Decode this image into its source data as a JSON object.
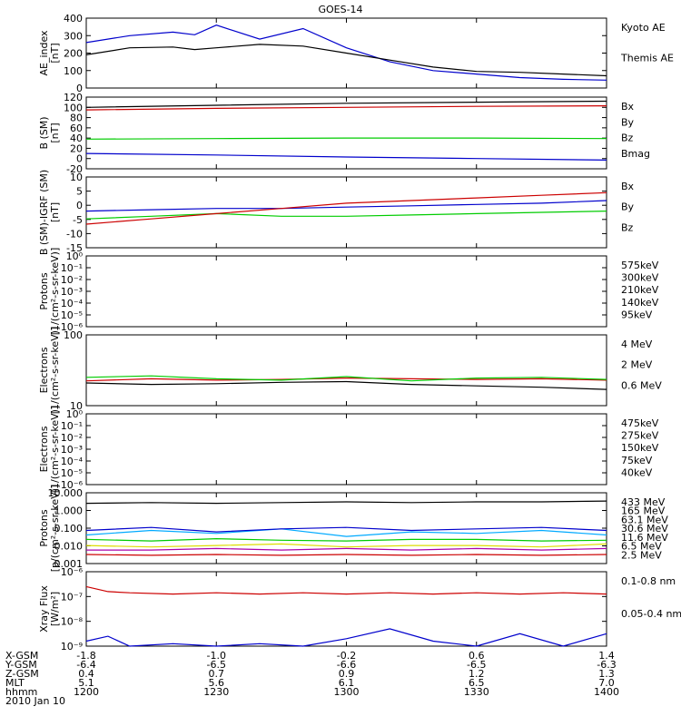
{
  "title": "GOES-14",
  "colors": {
    "black": "#000000",
    "red": "#cc0000",
    "green": "#00cc00",
    "blue": "#0000cc",
    "orange": "#ffaa00",
    "cyan": "#00aaff",
    "yellow": "#dddd00",
    "purple": "#aa00aa"
  },
  "x_axis": {
    "ticks": [
      1200,
      1230,
      1300,
      1330,
      1400
    ],
    "rows": [
      {
        "label": "X-GSM",
        "values": [
          "-1.8",
          "-1.0",
          "-0.2",
          "0.6",
          "1.4"
        ]
      },
      {
        "label": "Y-GSM",
        "values": [
          "-6.4",
          "-6.5",
          "-6.6",
          "-6.5",
          "-6.3"
        ]
      },
      {
        "label": "Z-GSM",
        "values": [
          "0.4",
          "0.7",
          "0.9",
          "1.2",
          "1.3"
        ]
      },
      {
        "label": "MLT",
        "values": [
          "5.1",
          "5.6",
          "6.1",
          "6.5",
          "7.0"
        ]
      },
      {
        "label": "hhmm",
        "values": [
          "1200",
          "1230",
          "1300",
          "1330",
          "1400"
        ]
      }
    ],
    "date": "2010 Jan 10"
  },
  "chart_data": [
    {
      "type": "line",
      "ylabel": "AE_index\n[nT]",
      "ylim": [
        0,
        400
      ],
      "ytick_labels": [
        "0",
        "100",
        "200",
        "300",
        "400"
      ],
      "x": [
        1200,
        1210,
        1220,
        1225,
        1230,
        1240,
        1250,
        1300,
        1310,
        1320,
        1330,
        1340,
        1350,
        1400
      ],
      "series": [
        {
          "name": "Kyoto AE",
          "color": "blue",
          "values": [
            260,
            300,
            320,
            305,
            360,
            280,
            340,
            230,
            150,
            100,
            80,
            60,
            50,
            45
          ]
        },
        {
          "name": "Themis AE",
          "color": "black",
          "values": [
            190,
            230,
            235,
            220,
            230,
            250,
            240,
            200,
            160,
            120,
            95,
            90,
            80,
            70
          ]
        }
      ]
    },
    {
      "type": "line",
      "ylabel": "B (SM)\n[nT]",
      "ylim": [
        -20,
        120
      ],
      "ytick_labels": [
        "-20",
        "0",
        "20",
        "40",
        "60",
        "80",
        "100",
        "120"
      ],
      "x": [
        1200,
        1230,
        1300,
        1330,
        1400
      ],
      "series": [
        {
          "name": "Bx",
          "color": "blue",
          "values": [
            10,
            7,
            3,
            0,
            -3
          ]
        },
        {
          "name": "By",
          "color": "green",
          "values": [
            38,
            39,
            40,
            40,
            39
          ]
        },
        {
          "name": "Bz",
          "color": "red",
          "values": [
            95,
            98,
            100,
            102,
            103
          ]
        },
        {
          "name": "Bmag",
          "color": "black",
          "values": [
            100,
            104,
            108,
            110,
            112
          ]
        }
      ]
    },
    {
      "type": "line",
      "ylabel": "B (SM)-IGRF (SM)\n[nT]",
      "ylim": [
        -15,
        12
      ],
      "ytick_labels": [
        "-15",
        "-10",
        "-5",
        "0",
        "5",
        "10"
      ],
      "x": [
        1200,
        1215,
        1230,
        1245,
        1300,
        1315,
        1330,
        1345,
        1400
      ],
      "series": [
        {
          "name": "Bx",
          "color": "blue",
          "values": [
            -1,
            -0.5,
            0,
            0,
            0.5,
            1,
            1.5,
            2,
            3
          ]
        },
        {
          "name": "By",
          "color": "green",
          "values": [
            -4,
            -3,
            -2,
            -3,
            -3,
            -2.5,
            -2,
            -1.5,
            -1
          ]
        },
        {
          "name": "Bz",
          "color": "red",
          "values": [
            -6,
            -4,
            -2,
            0,
            2,
            3,
            4,
            5,
            6
          ]
        }
      ]
    },
    {
      "type": "line",
      "ylabel": "Protons\n[1/(cm²-s-sr-keV)]",
      "ylim": [
        -6,
        0
      ],
      "log": true,
      "ytick_labels": [
        "10⁻⁶",
        "10⁻⁵",
        "10⁻⁴",
        "10⁻³",
        "10⁻²",
        "10⁻¹",
        "10⁰"
      ],
      "series": [
        {
          "name": "575keV",
          "color": "red"
        },
        {
          "name": "300keV",
          "color": "orange"
        },
        {
          "name": "210keV",
          "color": "green"
        },
        {
          "name": "140keV",
          "color": "blue"
        },
        {
          "name": "95keV",
          "color": "black"
        }
      ]
    },
    {
      "type": "line",
      "ylabel": "Electrons\n[1/(cm²-s-sr-keV)]",
      "ylim": [
        1,
        2
      ],
      "log": true,
      "ytick_labels": [
        "10",
        "100"
      ],
      "x": [
        1200,
        1215,
        1230,
        1245,
        1300,
        1315,
        1330,
        1345,
        1400
      ],
      "series": [
        {
          "name": "4 MeV",
          "color": "red",
          "values": [
            1.35,
            1.38,
            1.36,
            1.37,
            1.39,
            1.38,
            1.37,
            1.38,
            1.36
          ]
        },
        {
          "name": "2 MeV",
          "color": "green",
          "values": [
            1.4,
            1.42,
            1.38,
            1.36,
            1.41,
            1.35,
            1.39,
            1.4,
            1.37
          ]
        },
        {
          "name": "0.6 MeV",
          "color": "black",
          "values": [
            1.32,
            1.3,
            1.31,
            1.33,
            1.34,
            1.3,
            1.28,
            1.26,
            1.23
          ]
        }
      ]
    },
    {
      "type": "line",
      "ylabel": "Electrons\n[1/(cm²-s-sr-keV)]",
      "ylim": [
        -6,
        0
      ],
      "log": true,
      "ytick_labels": [
        "10⁻⁶",
        "10⁻⁵",
        "10⁻⁴",
        "10⁻³",
        "10⁻²",
        "10⁻¹",
        "10⁰"
      ],
      "series": [
        {
          "name": "475keV",
          "color": "red"
        },
        {
          "name": "275keV",
          "color": "orange"
        },
        {
          "name": "150keV",
          "color": "green"
        },
        {
          "name": "75keV",
          "color": "blue"
        },
        {
          "name": "40keV",
          "color": "black"
        }
      ]
    },
    {
      "type": "line",
      "ylabel": "Protons\n[p/(cm²-s-sr-keV)]",
      "ylim": [
        -3,
        1.7
      ],
      "log": true,
      "ytick_labels": [
        "0.001",
        "0.010",
        "0.100",
        "1.000",
        "10.000"
      ],
      "x": [
        1200,
        1215,
        1230,
        1245,
        1300,
        1315,
        1330,
        1345,
        1400
      ],
      "series": [
        {
          "name": "433 MeV",
          "color": "black",
          "values": [
            1.0,
            1.05,
            1.0,
            1.05,
            1.1,
            1.05,
            1.1,
            1.1,
            1.15
          ]
        },
        {
          "name": "165 MeV",
          "color": "red",
          "values": [
            -2.4,
            -2.45,
            -2.4,
            -2.45,
            -2.4,
            -2.45,
            -2.4,
            -2.45,
            -2.4
          ]
        },
        {
          "name": "63.1 MeV",
          "color": "yellow",
          "values": [
            -1.8,
            -1.9,
            -1.8,
            -1.7,
            -1.9,
            -1.8,
            -1.8,
            -1.9,
            -1.7
          ]
        },
        {
          "name": "30.6 MeV",
          "color": "green",
          "values": [
            -1.4,
            -1.5,
            -1.35,
            -1.45,
            -1.5,
            -1.4,
            -1.4,
            -1.5,
            -1.45
          ]
        },
        {
          "name": "11.6 MeV",
          "color": "cyan",
          "values": [
            -1.1,
            -0.8,
            -1.0,
            -0.7,
            -1.2,
            -0.9,
            -1.0,
            -0.8,
            -1.1
          ]
        },
        {
          "name": "6.5 MeV",
          "color": "purple",
          "values": [
            -2.1,
            -2.1,
            -2.0,
            -2.1,
            -2.0,
            -2.1,
            -2.0,
            -2.1,
            -2.0
          ]
        },
        {
          "name": "2.5 MeV",
          "color": "blue",
          "values": [
            -0.8,
            -0.6,
            -0.9,
            -0.7,
            -0.6,
            -0.8,
            -0.7,
            -0.6,
            -0.8
          ]
        }
      ]
    },
    {
      "type": "line",
      "ylabel": "Xray Flux\n[W/m²]",
      "ylim": [
        -9,
        -6
      ],
      "log": true,
      "ytick_labels": [
        "10⁻⁹",
        "10⁻⁸",
        "10⁻⁷",
        "10⁻⁶"
      ],
      "x": [
        1200,
        1205,
        1210,
        1220,
        1230,
        1240,
        1250,
        1300,
        1310,
        1320,
        1330,
        1340,
        1350,
        1400
      ],
      "series": [
        {
          "name": "0.1-0.8 nm",
          "color": "red",
          "values": [
            -6.6,
            -6.8,
            -6.85,
            -6.9,
            -6.85,
            -6.9,
            -6.85,
            -6.9,
            -6.85,
            -6.9,
            -6.85,
            -6.9,
            -6.85,
            -6.9
          ]
        },
        {
          "name": "0.05-0.4 nm",
          "color": "blue",
          "values": [
            -8.8,
            -8.6,
            -9,
            -8.9,
            -9,
            -8.9,
            -9,
            -8.7,
            -8.3,
            -8.8,
            -9,
            -8.5,
            -9,
            -8.5
          ]
        }
      ]
    }
  ]
}
